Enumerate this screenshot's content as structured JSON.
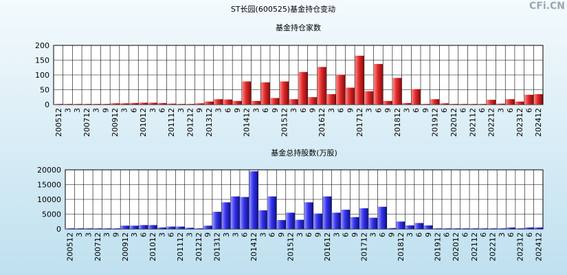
{
  "title": "ST长园(600525)基金持仓变动",
  "watermark": "CFi.CN",
  "chart_data": [
    {
      "type": "bar",
      "title": "基金持仓家数",
      "color": "#e02a2a",
      "grid": true,
      "categories": [
        "200512",
        "3",
        "3",
        "200712",
        "3",
        "9",
        "200912",
        "3",
        "6",
        "201012",
        "3",
        "6",
        "201112",
        "3",
        "201212",
        "9",
        "201312",
        "3",
        "6",
        "9",
        "201412",
        "3",
        "6",
        "9",
        "201512",
        "3",
        "6",
        "9",
        "201612",
        "3",
        "6",
        "9",
        "201712",
        "3",
        "6",
        "9",
        "201812",
        "3",
        "6",
        "9",
        "201912",
        "6",
        "202012",
        "6",
        "202112",
        "6",
        "202212",
        "3",
        "6",
        "202312",
        "6",
        "202412"
      ],
      "values": [
        2,
        2,
        2,
        2,
        2,
        2,
        4,
        4,
        5,
        6,
        6,
        5,
        3,
        2,
        2,
        4,
        10,
        18,
        17,
        12,
        78,
        12,
        75,
        22,
        78,
        18,
        110,
        25,
        127,
        35,
        100,
        57,
        165,
        45,
        137,
        12,
        90,
        5,
        52,
        2,
        18,
        4,
        2,
        2,
        2,
        2,
        16,
        3,
        18,
        10,
        33,
        35
      ],
      "ylim": [
        0,
        200
      ],
      "yticks": [
        0,
        50,
        100,
        150,
        200
      ]
    },
    {
      "type": "bar",
      "title": "基金总持股数(万股)",
      "color": "#3434ee",
      "grid": true,
      "categories": [
        "200512",
        "3",
        "3",
        "200712",
        "3",
        "9",
        "200912",
        "3",
        "6",
        "201012",
        "3",
        "6",
        "201112",
        "3",
        "201212",
        "9",
        "201312",
        "3",
        "3",
        "6",
        "201412",
        "3",
        "6",
        "9",
        "201512",
        "3",
        "6",
        "9",
        "201612",
        "3",
        "6",
        "9",
        "201712",
        "3",
        "6",
        "9",
        "201812",
        "3",
        "6",
        "9",
        "201912",
        "6",
        "202012",
        "6",
        "202112",
        "6",
        "202212",
        "3",
        "6",
        "202312",
        "6",
        "202412"
      ],
      "values": [
        200,
        200,
        200,
        200,
        200,
        200,
        1100,
        1100,
        1300,
        1300,
        500,
        800,
        800,
        400,
        200,
        1100,
        5800,
        9000,
        11000,
        10800,
        19500,
        6300,
        11000,
        3000,
        5500,
        3100,
        9000,
        5200,
        11000,
        5500,
        6500,
        4000,
        7000,
        3800,
        7500,
        300,
        2500,
        1200,
        2000,
        1200,
        200,
        200,
        200,
        200,
        200,
        200,
        200,
        200,
        500,
        200,
        500,
        500
      ],
      "ylim": [
        0,
        20000
      ],
      "yticks": [
        0,
        5000,
        10000,
        15000,
        20000
      ]
    }
  ]
}
